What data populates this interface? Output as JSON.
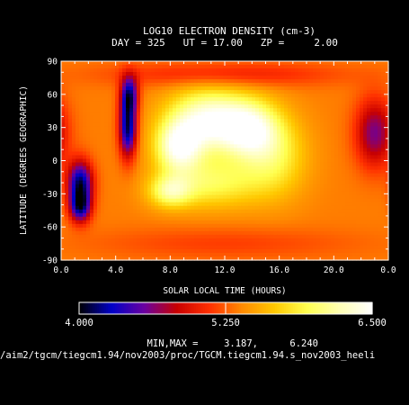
{
  "chart_data": {
    "type": "heatmap",
    "title": "LOG10 ELECTRON DENSITY (cm-3)",
    "subtitle": "DAY = 325   UT = 17.00   ZP =     2.00",
    "xlabel": "SOLAR LOCAL TIME (HOURS)",
    "ylabel": "LATITUDE (DEGREES GEOGRAPHIC)",
    "xlim": [
      0,
      24
    ],
    "ylim": [
      -90,
      90
    ],
    "x_ticks": [
      "0.0",
      "4.0",
      "8.0",
      "12.0",
      "16.0",
      "20.0",
      "0.0"
    ],
    "x_tick_values": [
      0,
      4,
      8,
      12,
      16,
      20,
      24
    ],
    "y_ticks": [
      "90",
      "60",
      "30",
      "0",
      "-30",
      "-60",
      "-90"
    ],
    "y_tick_values": [
      90,
      60,
      30,
      0,
      -30,
      -60,
      -90
    ],
    "colorbar": {
      "min": 4.0,
      "max": 6.5,
      "tick_labels": [
        "4.000",
        "5.250",
        "6.500"
      ],
      "tick_values": [
        4.0,
        5.25,
        6.5
      ],
      "colors": [
        "#000000",
        "#0000c8",
        "#6a00a0",
        "#c80000",
        "#ff3000",
        "#ff8a00",
        "#ffc800",
        "#ffff50",
        "#ffffb4",
        "#ffffff"
      ]
    },
    "base_value": 5.35,
    "features": [
      {
        "lt": 1.4,
        "lat": -20,
        "value": 4.15,
        "sigma_lt": 0.65,
        "sigma_lat": 14
      },
      {
        "lt": 1.4,
        "lat": -42,
        "value": 4.3,
        "sigma_lt": 0.55,
        "sigma_lat": 10
      },
      {
        "lt": 4.9,
        "lat": 30,
        "value": 4.1,
        "sigma_lt": 0.45,
        "sigma_lat": 19
      },
      {
        "lt": 5.0,
        "lat": 60,
        "value": 4.4,
        "sigma_lt": 0.45,
        "sigma_lat": 12
      },
      {
        "lt": 10.8,
        "lat": 36,
        "value": 6.45,
        "sigma_lt": 2.1,
        "sigma_lat": 20
      },
      {
        "lt": 8.6,
        "lat": 12,
        "value": 6.3,
        "sigma_lt": 1.2,
        "sigma_lat": 16
      },
      {
        "lt": 13.8,
        "lat": 28,
        "value": 6.2,
        "sigma_lt": 1.5,
        "sigma_lat": 18
      },
      {
        "lt": 8.0,
        "lat": -28,
        "value": 6.0,
        "sigma_lt": 1.1,
        "sigma_lat": 10
      },
      {
        "lt": 11.0,
        "lat": -20,
        "value": 5.95,
        "sigma_lt": 2.5,
        "sigma_lat": 16
      },
      {
        "lt": 15.6,
        "lat": 5,
        "value": 5.9,
        "sigma_lt": 1.7,
        "sigma_lat": 26
      },
      {
        "lt": 23.0,
        "lat": 25,
        "value": 4.6,
        "sigma_lt": 1.0,
        "sigma_lat": 22
      },
      {
        "lt": 12.0,
        "lat": 78,
        "value": 5.0,
        "sigma_lt": 6.0,
        "sigma_lat": 8
      },
      {
        "lt": 12.0,
        "lat": -75,
        "value": 5.15,
        "sigma_lt": 7.0,
        "sigma_lat": 10
      }
    ]
  },
  "footer": {
    "minmax_label": "MIN,MAX =",
    "min_value": "3.187,",
    "max_value": "6.240",
    "path": "/aim2/tgcm/tiegcm1.94/nov2003/proc/TGCM.tiegcm1.94.s_nov2003_heeli"
  }
}
